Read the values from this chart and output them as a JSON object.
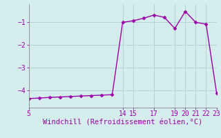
{
  "x": [
    5,
    6,
    7,
    8,
    9,
    10,
    11,
    12,
    13,
    14,
    15,
    16,
    17,
    18,
    19,
    20,
    21,
    22,
    23
  ],
  "y": [
    -4.35,
    -4.33,
    -4.3,
    -4.28,
    -4.26,
    -4.24,
    -4.22,
    -4.2,
    -4.18,
    -1.0,
    -0.93,
    -0.82,
    -0.68,
    -0.78,
    -1.27,
    -0.52,
    -1.0,
    -1.08,
    -4.1
  ],
  "xticks": [
    5,
    14,
    15,
    17,
    19,
    20,
    21,
    22,
    23
  ],
  "yticks": [
    -4,
    -3,
    -2,
    -1
  ],
  "yticklabels": [
    "−4",
    "−3",
    "−2",
    "−1"
  ],
  "xlim": [
    5,
    23
  ],
  "ylim": [
    -4.75,
    -0.2
  ],
  "line_color": "#9900aa",
  "marker_color": "#9900aa",
  "bg_color": "#d5edec",
  "grid_color": "#b0cece",
  "xlabel": "Windchill (Refroidissement éolien,°C)",
  "xlabel_color": "#9900aa",
  "xlabel_fontsize": 7.5,
  "tick_fontsize": 7,
  "tick_color": "#9900aa",
  "marker": "D",
  "marker_size": 2.5,
  "line_width": 1.0
}
